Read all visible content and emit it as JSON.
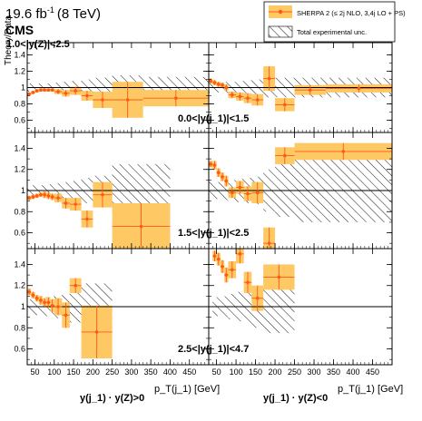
{
  "header": {
    "lumi": "19.6 fb",
    "lumi_exp": "-1",
    "energy": "(8 TeV)",
    "experiment": "CMS",
    "ylabel": "Theory/Data"
  },
  "legend": {
    "model_label": "SHERPA 2 (≤ 2j NLO, 3,4j LO + PS)",
    "unc_label": "Total experimental unc."
  },
  "colors": {
    "band": "#fec864",
    "marker": "#ff5a14",
    "hatch": "#000000"
  },
  "axes": {
    "xlabel_left": "p_T(j_1) [GeV]",
    "xlabel_right": "p_T(j_1) [GeV]",
    "column_left_title": "y(j_1) · y(Z)>0",
    "column_right_title": "y(j_1) · y(Z)<0",
    "xtick_labels": [
      "50",
      "100",
      "150",
      "200",
      "250",
      "300",
      "350",
      "400",
      "450"
    ],
    "ytick_labels": [
      "0.6",
      "0.8",
      "1",
      "1.2",
      "1.4"
    ]
  },
  "chart_data": [
    {
      "type": "scatter",
      "row_label": "0.0<|y(j_1)|<1.5",
      "column": "y(j1)·y(Z)>0",
      "extra_label": "1.0<|y(Z)|<2.5",
      "x_range": [
        30,
        500
      ],
      "ylim": [
        0.45,
        1.55
      ],
      "bins": [
        {
          "lo": 30,
          "hi": 40,
          "y": 0.92,
          "err": 0.02,
          "unc": 0.05
        },
        {
          "lo": 40,
          "hi": 50,
          "y": 0.94,
          "err": 0.02,
          "unc": 0.05
        },
        {
          "lo": 50,
          "hi": 60,
          "y": 0.96,
          "err": 0.02,
          "unc": 0.05
        },
        {
          "lo": 60,
          "hi": 70,
          "y": 0.97,
          "err": 0.02,
          "unc": 0.05
        },
        {
          "lo": 70,
          "hi": 80,
          "y": 0.97,
          "err": 0.02,
          "unc": 0.05
        },
        {
          "lo": 80,
          "hi": 90,
          "y": 0.97,
          "err": 0.02,
          "unc": 0.05
        },
        {
          "lo": 90,
          "hi": 100,
          "y": 0.97,
          "err": 0.02,
          "unc": 0.05
        },
        {
          "lo": 100,
          "hi": 120,
          "y": 0.95,
          "err": 0.03,
          "unc": 0.06
        },
        {
          "lo": 120,
          "hi": 140,
          "y": 0.93,
          "err": 0.04,
          "unc": 0.07
        },
        {
          "lo": 140,
          "hi": 170,
          "y": 0.96,
          "err": 0.05,
          "unc": 0.08
        },
        {
          "lo": 170,
          "hi": 200,
          "y": 0.9,
          "err": 0.06,
          "unc": 0.1
        },
        {
          "lo": 200,
          "hi": 250,
          "y": 0.85,
          "err": 0.1,
          "unc": 0.12
        },
        {
          "lo": 250,
          "hi": 330,
          "y": 0.85,
          "err": 0.22,
          "unc": 0.15
        },
        {
          "lo": 330,
          "hi": 500,
          "y": 0.87,
          "err": 0.1,
          "unc": 0.13
        }
      ]
    },
    {
      "type": "scatter",
      "row_label": "0.0<|y(j_1)|<1.5",
      "column": "y(j1)·y(Z)<0",
      "x_range": [
        30,
        500
      ],
      "ylim": [
        0.45,
        1.55
      ],
      "bins": [
        {
          "lo": 30,
          "hi": 40,
          "y": 1.08,
          "err": 0.03,
          "unc": 0.06
        },
        {
          "lo": 40,
          "hi": 50,
          "y": 1.06,
          "err": 0.03,
          "unc": 0.06
        },
        {
          "lo": 50,
          "hi": 60,
          "y": 1.04,
          "err": 0.03,
          "unc": 0.06
        },
        {
          "lo": 60,
          "hi": 70,
          "y": 1.03,
          "err": 0.03,
          "unc": 0.06
        },
        {
          "lo": 70,
          "hi": 80,
          "y": 1.0,
          "err": 0.04,
          "unc": 0.07
        },
        {
          "lo": 80,
          "hi": 100,
          "y": 0.91,
          "err": 0.04,
          "unc": 0.07
        },
        {
          "lo": 100,
          "hi": 120,
          "y": 0.89,
          "err": 0.05,
          "unc": 0.08
        },
        {
          "lo": 120,
          "hi": 140,
          "y": 0.87,
          "err": 0.06,
          "unc": 0.09
        },
        {
          "lo": 140,
          "hi": 170,
          "y": 0.85,
          "err": 0.07,
          "unc": 0.1
        },
        {
          "lo": 170,
          "hi": 200,
          "y": 1.11,
          "err": 0.15,
          "unc": 0.12
        },
        {
          "lo": 200,
          "hi": 250,
          "y": 0.79,
          "err": 0.08,
          "unc": 0.12
        },
        {
          "lo": 250,
          "hi": 330,
          "y": 0.97,
          "err": 0.06,
          "unc": 0.12
        },
        {
          "lo": 330,
          "hi": 500,
          "y": 0.99,
          "err": 0.05,
          "unc": 0.12
        }
      ]
    },
    {
      "type": "scatter",
      "row_label": "1.5<|y(j_1)|<2.5",
      "column": "y(j1)·y(Z)>0",
      "x_range": [
        30,
        500
      ],
      "ylim": [
        0.45,
        1.55
      ],
      "bins": [
        {
          "lo": 30,
          "hi": 40,
          "y": 0.93,
          "err": 0.02,
          "unc": 0.05
        },
        {
          "lo": 40,
          "hi": 50,
          "y": 0.94,
          "err": 0.02,
          "unc": 0.05
        },
        {
          "lo": 50,
          "hi": 60,
          "y": 0.95,
          "err": 0.02,
          "unc": 0.05
        },
        {
          "lo": 60,
          "hi": 70,
          "y": 0.96,
          "err": 0.02,
          "unc": 0.05
        },
        {
          "lo": 70,
          "hi": 80,
          "y": 0.96,
          "err": 0.03,
          "unc": 0.05
        },
        {
          "lo": 80,
          "hi": 90,
          "y": 0.95,
          "err": 0.03,
          "unc": 0.06
        },
        {
          "lo": 90,
          "hi": 100,
          "y": 0.94,
          "err": 0.03,
          "unc": 0.06
        },
        {
          "lo": 100,
          "hi": 120,
          "y": 0.93,
          "err": 0.04,
          "unc": 0.07
        },
        {
          "lo": 120,
          "hi": 140,
          "y": 0.88,
          "err": 0.05,
          "unc": 0.08
        },
        {
          "lo": 140,
          "hi": 170,
          "y": 0.87,
          "err": 0.06,
          "unc": 0.09
        },
        {
          "lo": 170,
          "hi": 200,
          "y": 0.73,
          "err": 0.08,
          "unc": 0.12
        },
        {
          "lo": 200,
          "hi": 250,
          "y": 0.96,
          "err": 0.12,
          "unc": 0.14
        },
        {
          "lo": 250,
          "hi": 400,
          "y": 0.66,
          "err": 0.22,
          "unc": 0.25
        }
      ]
    },
    {
      "type": "scatter",
      "row_label": "1.5<|y(j_1)|<2.5",
      "column": "y(j1)·y(Z)<0",
      "x_range": [
        30,
        500
      ],
      "ylim": [
        0.45,
        1.55
      ],
      "bins": [
        {
          "lo": 30,
          "hi": 40,
          "y": 1.25,
          "err": 0.03,
          "unc": 0.08
        },
        {
          "lo": 40,
          "hi": 50,
          "y": 1.24,
          "err": 0.04,
          "unc": 0.08
        },
        {
          "lo": 50,
          "hi": 60,
          "y": 1.17,
          "err": 0.04,
          "unc": 0.08
        },
        {
          "lo": 60,
          "hi": 70,
          "y": 1.13,
          "err": 0.04,
          "unc": 0.09
        },
        {
          "lo": 70,
          "hi": 80,
          "y": 1.09,
          "err": 0.05,
          "unc": 0.09
        },
        {
          "lo": 80,
          "hi": 100,
          "y": 0.98,
          "err": 0.05,
          "unc": 0.1
        },
        {
          "lo": 100,
          "hi": 120,
          "y": 1.03,
          "err": 0.06,
          "unc": 0.11
        },
        {
          "lo": 120,
          "hi": 140,
          "y": 0.97,
          "err": 0.07,
          "unc": 0.12
        },
        {
          "lo": 140,
          "hi": 170,
          "y": 0.98,
          "err": 0.1,
          "unc": 0.13
        },
        {
          "lo": 170,
          "hi": 200,
          "y": 0.5,
          "err": 0.15,
          "unc": 0.2
        },
        {
          "lo": 200,
          "hi": 250,
          "y": 1.33,
          "err": 0.08,
          "unc": 0.25
        },
        {
          "lo": 250,
          "hi": 500,
          "y": 1.37,
          "err": 0.08,
          "unc": 0.3
        }
      ]
    },
    {
      "type": "scatter",
      "row_label": "2.5<|y(j_1)|<4.7",
      "column": "y(j1)·y(Z)>0",
      "x_range": [
        30,
        500
      ],
      "ylim": [
        0.45,
        1.55
      ],
      "bins": [
        {
          "lo": 30,
          "hi": 40,
          "y": 1.14,
          "err": 0.03,
          "unc": 0.07
        },
        {
          "lo": 40,
          "hi": 50,
          "y": 1.11,
          "err": 0.03,
          "unc": 0.07
        },
        {
          "lo": 50,
          "hi": 60,
          "y": 1.08,
          "err": 0.03,
          "unc": 0.08
        },
        {
          "lo": 60,
          "hi": 70,
          "y": 1.06,
          "err": 0.04,
          "unc": 0.08
        },
        {
          "lo": 70,
          "hi": 80,
          "y": 1.04,
          "err": 0.04,
          "unc": 0.09
        },
        {
          "lo": 80,
          "hi": 90,
          "y": 1.04,
          "err": 0.05,
          "unc": 0.09
        },
        {
          "lo": 90,
          "hi": 100,
          "y": 1.01,
          "err": 0.06,
          "unc": 0.1
        },
        {
          "lo": 100,
          "hi": 120,
          "y": 1.0,
          "err": 0.08,
          "unc": 0.11
        },
        {
          "lo": 120,
          "hi": 140,
          "y": 0.92,
          "err": 0.12,
          "unc": 0.12
        },
        {
          "lo": 140,
          "hi": 170,
          "y": 1.2,
          "err": 0.07,
          "unc": 0.15
        },
        {
          "lo": 170,
          "hi": 250,
          "y": 0.76,
          "err": 0.25,
          "unc": 0.22
        }
      ]
    },
    {
      "type": "scatter",
      "row_label": "2.5<|y(j_1)|<4.7",
      "column": "y(j1)·y(Z)<0",
      "x_range": [
        30,
        500
      ],
      "ylim": [
        0.45,
        1.55
      ],
      "bins": [
        {
          "lo": 40,
          "hi": 50,
          "y": 1.48,
          "err": 0.05,
          "unc": 0.08
        },
        {
          "lo": 50,
          "hi": 60,
          "y": 1.45,
          "err": 0.06,
          "unc": 0.09
        },
        {
          "lo": 60,
          "hi": 70,
          "y": 1.38,
          "err": 0.06,
          "unc": 0.09
        },
        {
          "lo": 70,
          "hi": 80,
          "y": 1.3,
          "err": 0.07,
          "unc": 0.1
        },
        {
          "lo": 80,
          "hi": 100,
          "y": 1.35,
          "err": 0.08,
          "unc": 0.12
        },
        {
          "lo": 100,
          "hi": 120,
          "y": 1.5,
          "err": 0.09,
          "unc": 0.14
        },
        {
          "lo": 120,
          "hi": 140,
          "y": 1.23,
          "err": 0.1,
          "unc": 0.16
        },
        {
          "lo": 140,
          "hi": 170,
          "y": 1.08,
          "err": 0.12,
          "unc": 0.2
        },
        {
          "lo": 170,
          "hi": 250,
          "y": 1.28,
          "err": 0.12,
          "unc": 0.25
        }
      ]
    }
  ]
}
